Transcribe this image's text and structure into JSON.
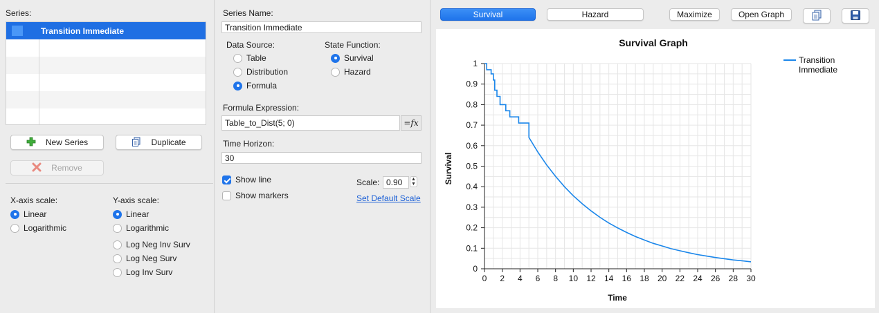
{
  "left_panel": {
    "series_label": "Series:",
    "series": [
      {
        "name": "Transition Immediate",
        "color": "#4a97f7",
        "selected": true
      }
    ],
    "new_series_label": "New Series",
    "duplicate_label": "Duplicate",
    "remove_label": "Remove",
    "x_axis_scale_label": "X-axis scale:",
    "x_axis_options": [
      "Linear",
      "Logarithmic"
    ],
    "x_axis_selected": "Linear",
    "y_axis_scale_label": "Y-axis scale:",
    "y_axis_options": [
      "Linear",
      "Logarithmic",
      "Log Neg Inv Surv",
      "Log Neg Surv",
      "Log Inv Surv"
    ],
    "y_axis_selected": "Linear"
  },
  "middle_panel": {
    "series_name_label": "Series Name:",
    "series_name_value": "Transition Immediate",
    "data_source_label": "Data Source:",
    "data_source_options": [
      "Table",
      "Distribution",
      "Formula"
    ],
    "data_source_selected": "Formula",
    "state_function_label": "State Function:",
    "state_function_options": [
      "Survival",
      "Hazard"
    ],
    "state_function_selected": "Survival",
    "formula_expression_label": "Formula Expression:",
    "formula_expression_value": "Table_to_Dist(5; 0)",
    "fx_button_label": "=fx",
    "time_horizon_label": "Time Horizon:",
    "time_horizon_value": "30",
    "show_line_label": "Show line",
    "show_line_checked": true,
    "show_markers_label": "Show markers",
    "show_markers_checked": false,
    "scale_label": "Scale:",
    "scale_value": "0.90",
    "set_default_scale_label": "Set Default Scale"
  },
  "toolbar": {
    "survival_tab": "Survival",
    "hazard_tab": "Hazard",
    "active_tab": "Survival",
    "maximize_label": "Maximize",
    "open_graph_label": "Open Graph",
    "copy_icon": "copy-icon",
    "save_icon": "save-icon"
  },
  "chart_data": {
    "type": "line",
    "title": "Survival Graph",
    "xlabel": "Time",
    "ylabel": "Survival",
    "xlim": [
      0,
      30
    ],
    "ylim": [
      0,
      1
    ],
    "xticks": [
      0,
      2,
      4,
      6,
      8,
      10,
      12,
      14,
      16,
      18,
      20,
      22,
      24,
      26,
      28,
      30
    ],
    "yticks": [
      0,
      0.1,
      0.2,
      0.3,
      0.4,
      0.5,
      0.6,
      0.7,
      0.8,
      0.9,
      1
    ],
    "grid": true,
    "legend_position": "top-right",
    "series": [
      {
        "name": "Transition Immediate",
        "color": "#1a86ea",
        "x": [
          0,
          0.25,
          0.25,
          0.75,
          0.75,
          1.0,
          1.0,
          1.15,
          1.15,
          1.4,
          1.4,
          1.75,
          1.75,
          2.4,
          2.4,
          2.85,
          2.85,
          3.85,
          3.85,
          5.0,
          5.0,
          6,
          7,
          8,
          9,
          10,
          11,
          12,
          13,
          14,
          15,
          16,
          17,
          18,
          19,
          20,
          21,
          22,
          23,
          24,
          25,
          26,
          27,
          28,
          29,
          30
        ],
        "y": [
          1.0,
          1.0,
          0.97,
          0.97,
          0.95,
          0.95,
          0.92,
          0.92,
          0.87,
          0.87,
          0.84,
          0.84,
          0.8,
          0.8,
          0.77,
          0.77,
          0.74,
          0.74,
          0.71,
          0.71,
          0.64,
          0.569,
          0.506,
          0.45,
          0.4,
          0.356,
          0.317,
          0.282,
          0.251,
          0.223,
          0.199,
          0.177,
          0.157,
          0.14,
          0.124,
          0.111,
          0.098,
          0.088,
          0.078,
          0.069,
          0.062,
          0.055,
          0.049,
          0.043,
          0.039,
          0.034
        ]
      }
    ]
  }
}
